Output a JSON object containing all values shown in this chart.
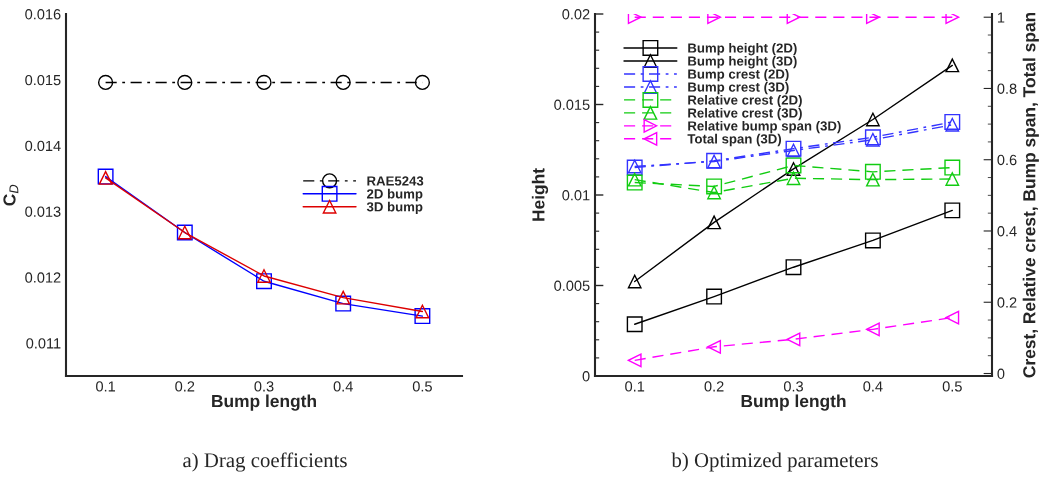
{
  "chart_data": [
    {
      "type": "line",
      "xlabel": "Bump length",
      "ylabel": "C$_{D}$",
      "x": [
        0.1,
        0.2,
        0.3,
        0.4,
        0.5
      ],
      "xlim": [
        0.05,
        0.55
      ],
      "xticks": [
        0.1,
        0.2,
        0.3,
        0.4,
        0.5
      ],
      "ylim": [
        0.0105,
        0.016
      ],
      "yticks": [
        0.011,
        0.012,
        0.013,
        0.014,
        0.015,
        0.016
      ],
      "legend": "center right",
      "grid": false,
      "annotations": [
        "a) Drag coefficients"
      ],
      "series": [
        {
          "name": "RAE5243",
          "color": "#000000",
          "marker": "circle",
          "line_style": "dashdot",
          "values": [
            0.01496,
            0.01496,
            0.01496,
            0.01496,
            0.01496
          ]
        },
        {
          "name": "2D bump",
          "color": "#0000ff",
          "marker": "square",
          "line_style": "solid",
          "values": [
            0.01353,
            0.01268,
            0.01194,
            0.0116,
            0.01141
          ]
        },
        {
          "name": "3D bump",
          "color": "#dd0000",
          "marker": "triangle",
          "line_style": "solid",
          "values": [
            0.01351,
            0.01268,
            0.01202,
            0.01169,
            0.01148
          ]
        }
      ]
    },
    {
      "type": "line",
      "xlabel": "Bump length",
      "ylabel": "Height",
      "y2label": "Crest, Relative crest, Bump span, Total span",
      "x": [
        0.1,
        0.2,
        0.3,
        0.4,
        0.5
      ],
      "xlim": [
        0.05,
        0.55
      ],
      "xticks": [
        0.1,
        0.2,
        0.3,
        0.4,
        0.5
      ],
      "ylim": [
        0,
        0.02
      ],
      "yticks": [
        0,
        0.005,
        0.01,
        0.015,
        0.02
      ],
      "y2lim": [
        -0.007,
        1.009
      ],
      "y2ticks": [
        0,
        0.2,
        0.4,
        0.6,
        0.8,
        1
      ],
      "legend": "top left",
      "grid": false,
      "annotations": [
        "b) Optimized parameters"
      ],
      "series": [
        {
          "name": "Bump height (2D)",
          "color": "#000000",
          "marker": "square",
          "line_style": "solid",
          "values": [
            0.00286,
            0.00439,
            0.00601,
            0.00749,
            0.00915
          ]
        },
        {
          "name": "Bump height (3D)",
          "color": "#000000",
          "marker": "triangle",
          "line_style": "solid",
          "values": [
            0.00522,
            0.00849,
            0.01144,
            0.01417,
            0.01716
          ]
        },
        {
          "name": "Bump crest (2D)",
          "color": "#3333ff",
          "marker": "square",
          "line_style": "dashdot",
          "axis": "y2",
          "values": [
            0.578,
            0.597,
            0.631,
            0.663,
            0.706
          ]
        },
        {
          "name": "Bump crest (3D)",
          "color": "#3333ff",
          "marker": "triangle",
          "line_style": "dashdot",
          "axis": "y2",
          "values": [
            0.581,
            0.595,
            0.626,
            0.656,
            0.698
          ]
        },
        {
          "name": "Relative crest (2D)",
          "color": "#11cc11",
          "marker": "square",
          "line_style": "dashed",
          "axis": "y2",
          "values": [
            0.536,
            0.525,
            0.584,
            0.566,
            0.578
          ]
        },
        {
          "name": "Relative crest (3D)",
          "color": "#11cc11",
          "marker": "triangle",
          "line_style": "dashed",
          "axis": "y2",
          "values": [
            0.544,
            0.508,
            0.548,
            0.544,
            0.546
          ]
        },
        {
          "name": "Relative bump span (3D)",
          "color": "#ff00ff",
          "marker": "triangle_right",
          "line_style": "dashed",
          "axis": "y2",
          "values": [
            1.0,
            1.0,
            1.0,
            1.0,
            1.0
          ]
        },
        {
          "name": "Total span (3D)",
          "color": "#ff00ff",
          "marker": "triangle_left",
          "line_style": "dashed",
          "axis": "y2",
          "values": [
            0.037,
            0.075,
            0.096,
            0.124,
            0.157
          ]
        }
      ]
    }
  ]
}
